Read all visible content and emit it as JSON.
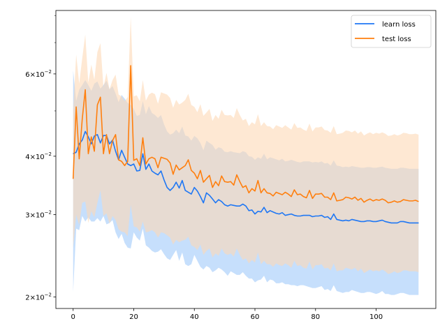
{
  "chart_data": {
    "type": "line",
    "yscale": "log",
    "xlim": [
      -5.7,
      119.7
    ],
    "ylim": [
      0.0189,
      0.082
    ],
    "x_ticks": [
      0,
      20,
      40,
      60,
      80,
      100
    ],
    "x_tick_labels": [
      "0",
      "20",
      "40",
      "60",
      "80",
      "100"
    ],
    "y_ticks": [
      0.02,
      0.03,
      0.04,
      0.06
    ],
    "y_tick_labels": [
      {
        "base": "2",
        "exp": "−2"
      },
      {
        "base": "3",
        "exp": "−2"
      },
      {
        "base": "4",
        "exp": "−2"
      },
      {
        "base": "6",
        "exp": "−2"
      }
    ],
    "legend_position": "top-right",
    "grid": false,
    "series": [
      {
        "name": "learn loss",
        "color": "#1f77f4",
        "band_color": "#b3d4fb",
        "x": [
          0,
          1,
          2,
          3,
          4,
          5,
          6,
          7,
          8,
          9,
          10,
          11,
          12,
          13,
          14,
          15,
          16,
          17,
          18,
          19,
          20,
          21,
          22,
          23,
          24,
          25,
          26,
          27,
          28,
          29,
          30,
          31,
          32,
          33,
          34,
          35,
          36,
          37,
          38,
          39,
          40,
          41,
          42,
          43,
          44,
          45,
          46,
          47,
          48,
          49,
          50,
          51,
          52,
          53,
          54,
          55,
          56,
          57,
          58,
          59,
          60,
          61,
          62,
          63,
          64,
          65,
          66,
          67,
          68,
          69,
          70,
          71,
          72,
          73,
          74,
          75,
          76,
          77,
          78,
          79,
          80,
          81,
          82,
          83,
          84,
          85,
          86,
          87,
          88,
          89,
          90,
          91,
          92,
          93,
          94,
          95,
          96,
          97,
          98,
          99,
          100,
          101,
          102,
          103,
          104,
          105,
          106,
          107,
          108,
          109,
          110,
          111,
          112,
          113,
          114
        ],
        "y": [
          0.0405,
          0.0408,
          0.0425,
          0.0433,
          0.0452,
          0.044,
          0.0425,
          0.0442,
          0.0445,
          0.0427,
          0.0443,
          0.0443,
          0.0425,
          0.0433,
          0.041,
          0.0393,
          0.0412,
          0.0398,
          0.0385,
          0.0382,
          0.0385,
          0.0372,
          0.0373,
          0.0405,
          0.0375,
          0.0385,
          0.0372,
          0.0368,
          0.0365,
          0.0372,
          0.0356,
          0.0343,
          0.0338,
          0.0343,
          0.0352,
          0.0342,
          0.0355,
          0.0338,
          0.0335,
          0.0332,
          0.0343,
          0.0337,
          0.0328,
          0.0318,
          0.0334,
          0.033,
          0.0324,
          0.0318,
          0.0323,
          0.032,
          0.0315,
          0.0313,
          0.0315,
          0.0314,
          0.0313,
          0.0313,
          0.0316,
          0.0313,
          0.0306,
          0.0307,
          0.0301,
          0.0305,
          0.0304,
          0.0311,
          0.0303,
          0.0306,
          0.0304,
          0.0302,
          0.0301,
          0.0303,
          0.0299,
          0.03,
          0.0301,
          0.0299,
          0.0298,
          0.0298,
          0.0299,
          0.0299,
          0.0299,
          0.0297,
          0.0298,
          0.0298,
          0.0299,
          0.0296,
          0.0297,
          0.0293,
          0.0301,
          0.0293,
          0.0292,
          0.0291,
          0.0292,
          0.0291,
          0.0293,
          0.0292,
          0.0291,
          0.029,
          0.029,
          0.0291,
          0.0291,
          0.029,
          0.029,
          0.0291,
          0.0292,
          0.029,
          0.0289,
          0.0288,
          0.0288,
          0.0288,
          0.029,
          0.029,
          0.0289,
          0.0288,
          0.0288,
          0.0288,
          0.0288
        ],
        "lower": [
          0.0205,
          0.028,
          0.0278,
          0.0298,
          0.029,
          0.0296,
          0.029,
          0.029,
          0.0295,
          0.029,
          0.0298,
          0.0286,
          0.0288,
          0.0292,
          0.0275,
          0.0266,
          0.0273,
          0.0261,
          0.0255,
          0.0254,
          0.0275,
          0.0268,
          0.0264,
          0.028,
          0.0258,
          0.0255,
          0.0251,
          0.0249,
          0.025,
          0.0253,
          0.0247,
          0.0242,
          0.024,
          0.0246,
          0.0252,
          0.0239,
          0.0249,
          0.0235,
          0.0233,
          0.0235,
          0.0246,
          0.0239,
          0.0232,
          0.0229,
          0.0233,
          0.0231,
          0.0226,
          0.0228,
          0.0231,
          0.0229,
          0.0226,
          0.0222,
          0.0227,
          0.0225,
          0.0223,
          0.0223,
          0.0226,
          0.0222,
          0.0219,
          0.0219,
          0.0215,
          0.0217,
          0.0218,
          0.0222,
          0.0215,
          0.0218,
          0.0217,
          0.0214,
          0.0214,
          0.0215,
          0.0213,
          0.0213,
          0.0212,
          0.0212,
          0.0211,
          0.0212,
          0.0212,
          0.0211,
          0.021,
          0.0209,
          0.0209,
          0.021,
          0.0211,
          0.0207,
          0.0208,
          0.0206,
          0.0212,
          0.0206,
          0.0205,
          0.0204,
          0.0205,
          0.0205,
          0.0207,
          0.0206,
          0.0205,
          0.0204,
          0.0204,
          0.0205,
          0.0205,
          0.0204,
          0.0203,
          0.0204,
          0.0206,
          0.0203,
          0.0203,
          0.0202,
          0.0202,
          0.0203,
          0.0204,
          0.0204,
          0.0203,
          0.0202,
          0.0202,
          0.0202,
          0.0202
        ],
        "upper": [
          0.061,
          0.0525,
          0.0555,
          0.0568,
          0.0582,
          0.0568,
          0.0552,
          0.0572,
          0.0578,
          0.0558,
          0.0568,
          0.058,
          0.0556,
          0.0565,
          0.0545,
          0.0522,
          0.0541,
          0.0531,
          0.052,
          0.0515,
          0.0505,
          0.0488,
          0.049,
          0.0525,
          0.0492,
          0.0512,
          0.0495,
          0.049,
          0.0483,
          0.049,
          0.0468,
          0.0452,
          0.0445,
          0.0448,
          0.0456,
          0.0448,
          0.0463,
          0.0443,
          0.0441,
          0.0432,
          0.0442,
          0.0437,
          0.0427,
          0.0412,
          0.0432,
          0.0427,
          0.0423,
          0.0413,
          0.0418,
          0.0416,
          0.0409,
          0.0408,
          0.041,
          0.0408,
          0.0407,
          0.0406,
          0.041,
          0.0408,
          0.04,
          0.0399,
          0.0393,
          0.0398,
          0.0395,
          0.0405,
          0.0394,
          0.0398,
          0.0396,
          0.0394,
          0.0392,
          0.0395,
          0.039,
          0.0391,
          0.0393,
          0.0391,
          0.0389,
          0.0388,
          0.039,
          0.039,
          0.039,
          0.0388,
          0.0389,
          0.0388,
          0.039,
          0.0386,
          0.0387,
          0.0382,
          0.0392,
          0.0382,
          0.0381,
          0.0379,
          0.038,
          0.0379,
          0.0381,
          0.038,
          0.0379,
          0.0378,
          0.0378,
          0.0379,
          0.0379,
          0.0378,
          0.0378,
          0.0379,
          0.038,
          0.0378,
          0.0377,
          0.0376,
          0.0376,
          0.0376,
          0.0378,
          0.0378,
          0.0377,
          0.0376,
          0.0376,
          0.0376,
          0.0376
        ]
      },
      {
        "name": "test loss",
        "color": "#ff7f0e",
        "band_color": "#fdd9b5",
        "x": [
          0,
          1,
          2,
          3,
          4,
          5,
          6,
          7,
          8,
          9,
          10,
          11,
          12,
          13,
          14,
          15,
          16,
          17,
          18,
          19,
          20,
          21,
          22,
          23,
          24,
          25,
          26,
          27,
          28,
          29,
          30,
          31,
          32,
          33,
          34,
          35,
          36,
          37,
          38,
          39,
          40,
          41,
          42,
          43,
          44,
          45,
          46,
          47,
          48,
          49,
          50,
          51,
          52,
          53,
          54,
          55,
          56,
          57,
          58,
          59,
          60,
          61,
          62,
          63,
          64,
          65,
          66,
          67,
          68,
          69,
          70,
          71,
          72,
          73,
          74,
          75,
          76,
          77,
          78,
          79,
          80,
          81,
          82,
          83,
          84,
          85,
          86,
          87,
          88,
          89,
          90,
          91,
          92,
          93,
          94,
          95,
          96,
          97,
          98,
          99,
          100,
          101,
          102,
          103,
          104,
          105,
          106,
          107,
          108,
          109,
          110,
          111,
          112,
          113,
          114
        ],
        "y": [
          0.0358,
          0.051,
          0.0395,
          0.048,
          0.0555,
          0.0405,
          0.044,
          0.041,
          0.0515,
          0.0535,
          0.0405,
          0.0445,
          0.0405,
          0.0432,
          0.0445,
          0.0393,
          0.039,
          0.0382,
          0.039,
          0.0625,
          0.0392,
          0.0395,
          0.0382,
          0.0438,
          0.0385,
          0.0395,
          0.0398,
          0.0395,
          0.0378,
          0.0398,
          0.0396,
          0.0394,
          0.0387,
          0.0366,
          0.0383,
          0.0374,
          0.0378,
          0.0382,
          0.0393,
          0.0373,
          0.0368,
          0.0358,
          0.0373,
          0.0352,
          0.0358,
          0.0364,
          0.0343,
          0.0353,
          0.0346,
          0.0363,
          0.0353,
          0.0352,
          0.0353,
          0.0347,
          0.0365,
          0.0353,
          0.0343,
          0.0346,
          0.0334,
          0.0341,
          0.0337,
          0.0355,
          0.0334,
          0.0341,
          0.0334,
          0.0333,
          0.0329,
          0.0335,
          0.0333,
          0.0331,
          0.0335,
          0.0332,
          0.0328,
          0.0339,
          0.0331,
          0.0332,
          0.0328,
          0.0326,
          0.0338,
          0.0325,
          0.0332,
          0.0332,
          0.0333,
          0.0327,
          0.0327,
          0.0323,
          0.0334,
          0.0321,
          0.0322,
          0.0323,
          0.0327,
          0.0326,
          0.0324,
          0.0327,
          0.0322,
          0.0325,
          0.0319,
          0.0322,
          0.0324,
          0.0321,
          0.0323,
          0.0322,
          0.0324,
          0.0322,
          0.0318,
          0.0319,
          0.0321,
          0.0319,
          0.032,
          0.0323,
          0.0322,
          0.0321,
          0.0321,
          0.0322,
          0.032
        ],
        "lower": [
          0.0255,
          0.03,
          0.0285,
          0.0318,
          0.032,
          0.0288,
          0.0305,
          0.0296,
          0.0318,
          0.0338,
          0.0298,
          0.0302,
          0.0287,
          0.0298,
          0.0292,
          0.0279,
          0.0276,
          0.0275,
          0.027,
          0.0315,
          0.0283,
          0.0282,
          0.0276,
          0.029,
          0.0275,
          0.0276,
          0.0278,
          0.0275,
          0.0268,
          0.0275,
          0.0274,
          0.0271,
          0.0268,
          0.0259,
          0.0265,
          0.0262,
          0.0264,
          0.0265,
          0.0269,
          0.0258,
          0.0256,
          0.0252,
          0.0259,
          0.0246,
          0.0251,
          0.0254,
          0.0243,
          0.0248,
          0.0245,
          0.0254,
          0.0248,
          0.0246,
          0.0248,
          0.0244,
          0.0254,
          0.0246,
          0.024,
          0.0242,
          0.0236,
          0.024,
          0.0237,
          0.0249,
          0.0235,
          0.0239,
          0.0235,
          0.0235,
          0.0232,
          0.0236,
          0.0234,
          0.0233,
          0.0236,
          0.0234,
          0.0231,
          0.0239,
          0.0233,
          0.0234,
          0.0231,
          0.023,
          0.0238,
          0.0229,
          0.0234,
          0.0234,
          0.0235,
          0.023,
          0.0231,
          0.0228,
          0.0236,
          0.0227,
          0.0228,
          0.0228,
          0.0231,
          0.023,
          0.0229,
          0.0231,
          0.0227,
          0.023,
          0.0225,
          0.0227,
          0.0229,
          0.0227,
          0.0228,
          0.0227,
          0.0229,
          0.0227,
          0.0224,
          0.0225,
          0.0227,
          0.0225,
          0.0226,
          0.0228,
          0.0228,
          0.0227,
          0.0227,
          0.0227,
          0.0226
        ],
        "upper": [
          0.05,
          0.066,
          0.0572,
          0.0648,
          0.0728,
          0.0575,
          0.0628,
          0.0583,
          0.0668,
          0.0698,
          0.0562,
          0.0603,
          0.0556,
          0.0582,
          0.0598,
          0.0542,
          0.0537,
          0.0525,
          0.0535,
          0.0795,
          0.0537,
          0.054,
          0.0524,
          0.0582,
          0.0526,
          0.0542,
          0.0547,
          0.0543,
          0.0518,
          0.0548,
          0.0545,
          0.0542,
          0.0533,
          0.0508,
          0.0528,
          0.0516,
          0.0521,
          0.0528,
          0.0544,
          0.0515,
          0.051,
          0.0497,
          0.0517,
          0.0488,
          0.0496,
          0.0505,
          0.0476,
          0.049,
          0.0481,
          0.0503,
          0.049,
          0.0489,
          0.049,
          0.0483,
          0.0507,
          0.049,
          0.0477,
          0.0481,
          0.0464,
          0.0473,
          0.0468,
          0.0492,
          0.0464,
          0.0473,
          0.0464,
          0.0463,
          0.0457,
          0.0466,
          0.0463,
          0.046,
          0.0466,
          0.0461,
          0.0456,
          0.0471,
          0.046,
          0.0461,
          0.0456,
          0.0453,
          0.047,
          0.0452,
          0.0461,
          0.0461,
          0.0463,
          0.0455,
          0.0454,
          0.0449,
          0.0464,
          0.0446,
          0.0447,
          0.0449,
          0.0454,
          0.0453,
          0.045,
          0.0454,
          0.0447,
          0.0452,
          0.0443,
          0.0447,
          0.045,
          0.0446,
          0.0449,
          0.0447,
          0.045,
          0.0447,
          0.0442,
          0.0443,
          0.0446,
          0.0443,
          0.0445,
          0.0449,
          0.0448,
          0.0446,
          0.0446,
          0.0447,
          0.0445
        ]
      }
    ]
  }
}
